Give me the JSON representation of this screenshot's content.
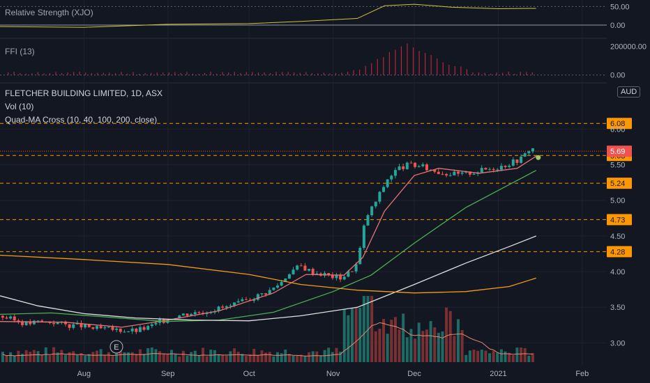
{
  "colors": {
    "background": "#131722",
    "grid": "#1e222d",
    "text": "#b2b5be",
    "up_candle": "#26a69a",
    "down_candle": "#ef5350",
    "up_volume": "#1e6b65",
    "down_volume": "#7a2f33",
    "level_line": "#ff9800",
    "rs_line": "#d4c43a",
    "ffi_bars": "#b0283a",
    "ma10": "#e57373",
    "ma40": "#4caf50",
    "ma100": "#e0e0e0",
    "ma200": "#f39c12",
    "vol_ma": "#e8896d",
    "cross_dot": "#9ccc65"
  },
  "panels": {
    "rs_label": "Relative Strength (XJO)",
    "ffi_label": "FFI (13)",
    "main_title": "FLETCHER BUILDING LIMITED, 1D, ASX",
    "vol_label": "Vol (10)",
    "ma_label": "Quad-MA Cross (10, 40, 100, 200, close)",
    "currency_button": "AUD",
    "event_marker": "E"
  },
  "chart_data": {
    "type": "candlestick",
    "title": "FLETCHER BUILDING LIMITED, 1D, ASX",
    "x_tick_labels": [
      "Aug",
      "Sep",
      "Oct",
      "Nov",
      "Dec",
      "2021",
      "Feb"
    ],
    "y_tick_labels": [
      "3.00",
      "3.50",
      "4.00",
      "4.50",
      "5.00",
      "5.50",
      "6.00"
    ],
    "ylim": [
      2.73,
      6.6
    ],
    "current_price": "5.69",
    "price_levels": [
      "6.08",
      "5.63",
      "5.24",
      "4.73",
      "4.28"
    ],
    "price_level_values": [
      6.08,
      5.63,
      5.24,
      4.73,
      4.28
    ],
    "rs_panel": {
      "y_tick_labels": [
        "50.00",
        "0.00"
      ],
      "ylim": [
        -30,
        60
      ]
    },
    "ffi_panel": {
      "y_tick_labels": [
        "200000.00",
        "0.00"
      ],
      "ylim": [
        -40000,
        240000
      ]
    },
    "x_months": [
      {
        "label": "Aug",
        "date": "2020-08-01"
      },
      {
        "label": "Sep",
        "date": "2020-09-01"
      },
      {
        "label": "Oct",
        "date": "2020-10-01"
      },
      {
        "label": "Nov",
        "date": "2020-11-01"
      },
      {
        "label": "Dec",
        "date": "2020-12-01"
      },
      {
        "label": "2021",
        "date": "2021-01-01"
      },
      {
        "label": "Feb",
        "date": "2021-02-01"
      }
    ],
    "x_range": [
      "2020-07-01",
      "2021-02-08"
    ],
    "close_path": [
      [
        "2020-07-01",
        3.38
      ],
      [
        "2020-07-06",
        3.32
      ],
      [
        "2020-07-11",
        3.27
      ],
      [
        "2020-07-16",
        3.3
      ],
      [
        "2020-07-21",
        3.29
      ],
      [
        "2020-07-26",
        3.25
      ],
      [
        "2020-07-31",
        3.24
      ],
      [
        "2020-08-05",
        3.2
      ],
      [
        "2020-08-10",
        3.19
      ],
      [
        "2020-08-15",
        3.18
      ],
      [
        "2020-08-20",
        3.17
      ],
      [
        "2020-08-25",
        3.22
      ],
      [
        "2020-08-30",
        3.31
      ],
      [
        "2020-09-04",
        3.38
      ],
      [
        "2020-09-09",
        3.42
      ],
      [
        "2020-09-14",
        3.44
      ],
      [
        "2020-09-19",
        3.48
      ],
      [
        "2020-09-24",
        3.51
      ],
      [
        "2020-09-29",
        3.58
      ],
      [
        "2020-10-04",
        3.66
      ],
      [
        "2020-10-09",
        3.74
      ],
      [
        "2020-10-13",
        3.86
      ],
      [
        "2020-10-16",
        4.0
      ],
      [
        "2020-10-20",
        4.08
      ],
      [
        "2020-10-24",
        4.0
      ],
      [
        "2020-10-28",
        3.97
      ],
      [
        "2020-11-01",
        3.93
      ],
      [
        "2020-11-04",
        3.92
      ],
      [
        "2020-11-07",
        3.99
      ],
      [
        "2020-11-10",
        4.12
      ],
      [
        "2020-11-13",
        4.75
      ],
      [
        "2020-11-17",
        5.0
      ],
      [
        "2020-11-21",
        5.3
      ],
      [
        "2020-11-25",
        5.45
      ],
      [
        "2020-11-29",
        5.5
      ],
      [
        "2020-12-03",
        5.48
      ],
      [
        "2020-12-08",
        5.42
      ],
      [
        "2020-12-13",
        5.38
      ],
      [
        "2020-12-18",
        5.36
      ],
      [
        "2020-12-23",
        5.4
      ],
      [
        "2020-12-28",
        5.44
      ],
      [
        "2021-01-02",
        5.48
      ],
      [
        "2021-01-07",
        5.55
      ],
      [
        "2021-01-10",
        5.6
      ],
      [
        "2021-01-13",
        5.75
      ],
      [
        "2021-01-15",
        5.69
      ]
    ],
    "series": [
      {
        "name": "10",
        "points": [
          [
            "2020-07-01",
            3.3
          ],
          [
            "2020-07-25",
            3.29
          ],
          [
            "2020-08-15",
            3.22
          ],
          [
            "2020-09-01",
            3.32
          ],
          [
            "2020-09-20",
            3.45
          ],
          [
            "2020-10-10",
            3.7
          ],
          [
            "2020-10-22",
            3.96
          ],
          [
            "2020-11-05",
            3.95
          ],
          [
            "2020-11-12",
            4.2
          ],
          [
            "2020-11-20",
            4.85
          ],
          [
            "2020-12-01",
            5.35
          ],
          [
            "2020-12-10",
            5.45
          ],
          [
            "2020-12-25",
            5.38
          ],
          [
            "2021-01-08",
            5.45
          ],
          [
            "2021-01-15",
            5.62
          ]
        ]
      },
      {
        "name": "40",
        "points": [
          [
            "2020-07-01",
            3.4
          ],
          [
            "2020-07-20",
            3.42
          ],
          [
            "2020-08-10",
            3.36
          ],
          [
            "2020-08-31",
            3.3
          ],
          [
            "2020-09-20",
            3.32
          ],
          [
            "2020-10-10",
            3.43
          ],
          [
            "2020-11-01",
            3.72
          ],
          [
            "2020-11-15",
            3.95
          ],
          [
            "2020-12-01",
            4.4
          ],
          [
            "2020-12-20",
            4.9
          ],
          [
            "2021-01-05",
            5.22
          ],
          [
            "2021-01-15",
            5.42
          ]
        ]
      },
      {
        "name": "100",
        "points": [
          [
            "2020-07-01",
            3.66
          ],
          [
            "2020-07-15",
            3.52
          ],
          [
            "2020-08-01",
            3.41
          ],
          [
            "2020-08-20",
            3.35
          ],
          [
            "2020-09-10",
            3.32
          ],
          [
            "2020-10-01",
            3.31
          ],
          [
            "2020-10-20",
            3.38
          ],
          [
            "2020-11-10",
            3.5
          ],
          [
            "2020-12-01",
            3.82
          ],
          [
            "2020-12-20",
            4.12
          ],
          [
            "2021-01-05",
            4.35
          ],
          [
            "2021-01-15",
            4.5
          ]
        ]
      },
      {
        "name": "200",
        "points": [
          [
            "2020-07-01",
            4.23
          ],
          [
            "2020-08-01",
            4.17
          ],
          [
            "2020-09-01",
            4.1
          ],
          [
            "2020-10-01",
            3.96
          ],
          [
            "2020-10-20",
            3.82
          ],
          [
            "2020-11-10",
            3.74
          ],
          [
            "2020-12-01",
            3.7
          ],
          [
            "2020-12-20",
            3.72
          ],
          [
            "2021-01-05",
            3.79
          ],
          [
            "2021-01-15",
            3.91
          ]
        ]
      }
    ],
    "rs_series": [
      [
        "2020-07-01",
        -4
      ],
      [
        "2020-08-01",
        -6
      ],
      [
        "2020-09-01",
        2
      ],
      [
        "2020-10-01",
        4
      ],
      [
        "2020-10-20",
        10
      ],
      [
        "2020-11-10",
        18
      ],
      [
        "2020-11-20",
        52
      ],
      [
        "2020-12-01",
        56
      ],
      [
        "2020-12-15",
        48
      ],
      [
        "2021-01-01",
        44
      ],
      [
        "2021-01-15",
        45
      ]
    ],
    "ffi_bars": [
      [
        "2020-11-10",
        20000
      ],
      [
        "2020-11-15",
        60000
      ],
      [
        "2020-11-20",
        120000
      ],
      [
        "2020-11-25",
        175000
      ],
      [
        "2020-11-28",
        200000
      ],
      [
        "2020-12-02",
        165000
      ],
      [
        "2020-12-08",
        110000
      ],
      [
        "2020-12-14",
        60000
      ],
      [
        "2020-12-20",
        25000
      ]
    ]
  }
}
